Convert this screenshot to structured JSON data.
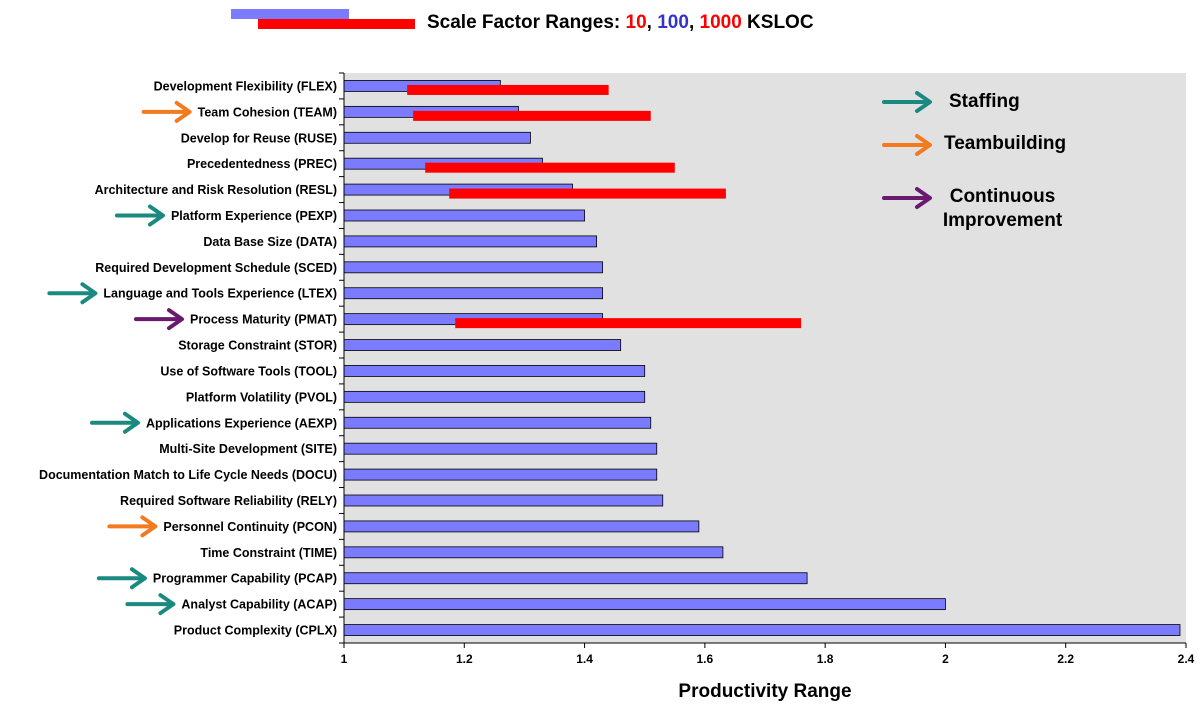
{
  "legend": {
    "prefix": "Scale Factor Ranges: ",
    "v10": "10",
    "sep1": ", ",
    "v100": "100",
    "sep2": ", ",
    "v1000": "1000",
    "unit": " KSLOC"
  },
  "annotations": [
    {
      "label": "Staffing",
      "color": "#1a8a80"
    },
    {
      "label": "Teambuilding",
      "color": "#f47a20"
    },
    {
      "label": "Continuous Improvement",
      "color": "#6a1a6e"
    }
  ],
  "colors": {
    "bar_fill": "#7b7bff",
    "scale_bar": "#ff0000",
    "plot_bg": "#e1e1e1",
    "staffing": "#1a8a80",
    "teambuilding": "#f47a20",
    "continuous_improvement": "#6a1a6e"
  },
  "chart_data": {
    "type": "bar",
    "orientation": "horizontal",
    "xlabel": "Productivity Range",
    "xlim": [
      1,
      2.4
    ],
    "xticks": [
      "1",
      "1.2",
      "1.4",
      "1.6",
      "1.8",
      "2",
      "2.2",
      "2.4"
    ],
    "grid": false,
    "categories": [
      "Development Flexibility (FLEX)",
      "Team Cohesion (TEAM)",
      "Develop for Reuse (RUSE)",
      "Precedentedness (PREC)",
      "Architecture and Risk Resolution (RESL)",
      "Platform Experience (PEXP)",
      "Data Base Size (DATA)",
      "Required Development Schedule (SCED)",
      "Language and Tools Experience (LTEX)",
      "Process Maturity (PMAT)",
      "Storage Constraint (STOR)",
      "Use of Software Tools (TOOL)",
      "Platform Volatility (PVOL)",
      "Applications Experience (AEXP)",
      "Multi-Site Development (SITE)",
      "Documentation Match to Life Cycle Needs (DOCU)",
      "Required Software Reliability (RELY)",
      "Personnel Continuity (PCON)",
      "Time Constraint (TIME)",
      "Programmer Capability (PCAP)",
      "Analyst Capability (ACAP)",
      "Product Complexity (CPLX)"
    ],
    "values": [
      1.26,
      1.29,
      1.31,
      1.33,
      1.38,
      1.4,
      1.42,
      1.43,
      1.43,
      1.43,
      1.46,
      1.5,
      1.5,
      1.51,
      1.52,
      1.52,
      1.53,
      1.59,
      1.63,
      1.77,
      2.0,
      2.39
    ],
    "scale_factor_ranges": [
      {
        "category": "Development Flexibility (FLEX)",
        "range": [
          1.105,
          1.44
        ]
      },
      {
        "category": "Team Cohesion (TEAM)",
        "range": [
          1.115,
          1.51
        ]
      },
      {
        "category": "Precedentedness (PREC)",
        "range": [
          1.135,
          1.55
        ]
      },
      {
        "category": "Architecture and Risk Resolution (RESL)",
        "range": [
          1.175,
          1.635
        ]
      },
      {
        "category": "Process Maturity (PMAT)",
        "range": [
          1.185,
          1.76
        ]
      }
    ],
    "arrows": [
      {
        "category": "Team Cohesion (TEAM)",
        "group": "teambuilding"
      },
      {
        "category": "Platform Experience (PEXP)",
        "group": "staffing"
      },
      {
        "category": "Language and Tools Experience (LTEX)",
        "group": "staffing"
      },
      {
        "category": "Process Maturity (PMAT)",
        "group": "continuous_improvement"
      },
      {
        "category": "Applications Experience (AEXP)",
        "group": "staffing"
      },
      {
        "category": "Personnel Continuity (PCON)",
        "group": "teambuilding"
      },
      {
        "category": "Programmer Capability (PCAP)",
        "group": "staffing"
      },
      {
        "category": "Analyst Capability (ACAP)",
        "group": "staffing"
      }
    ]
  }
}
